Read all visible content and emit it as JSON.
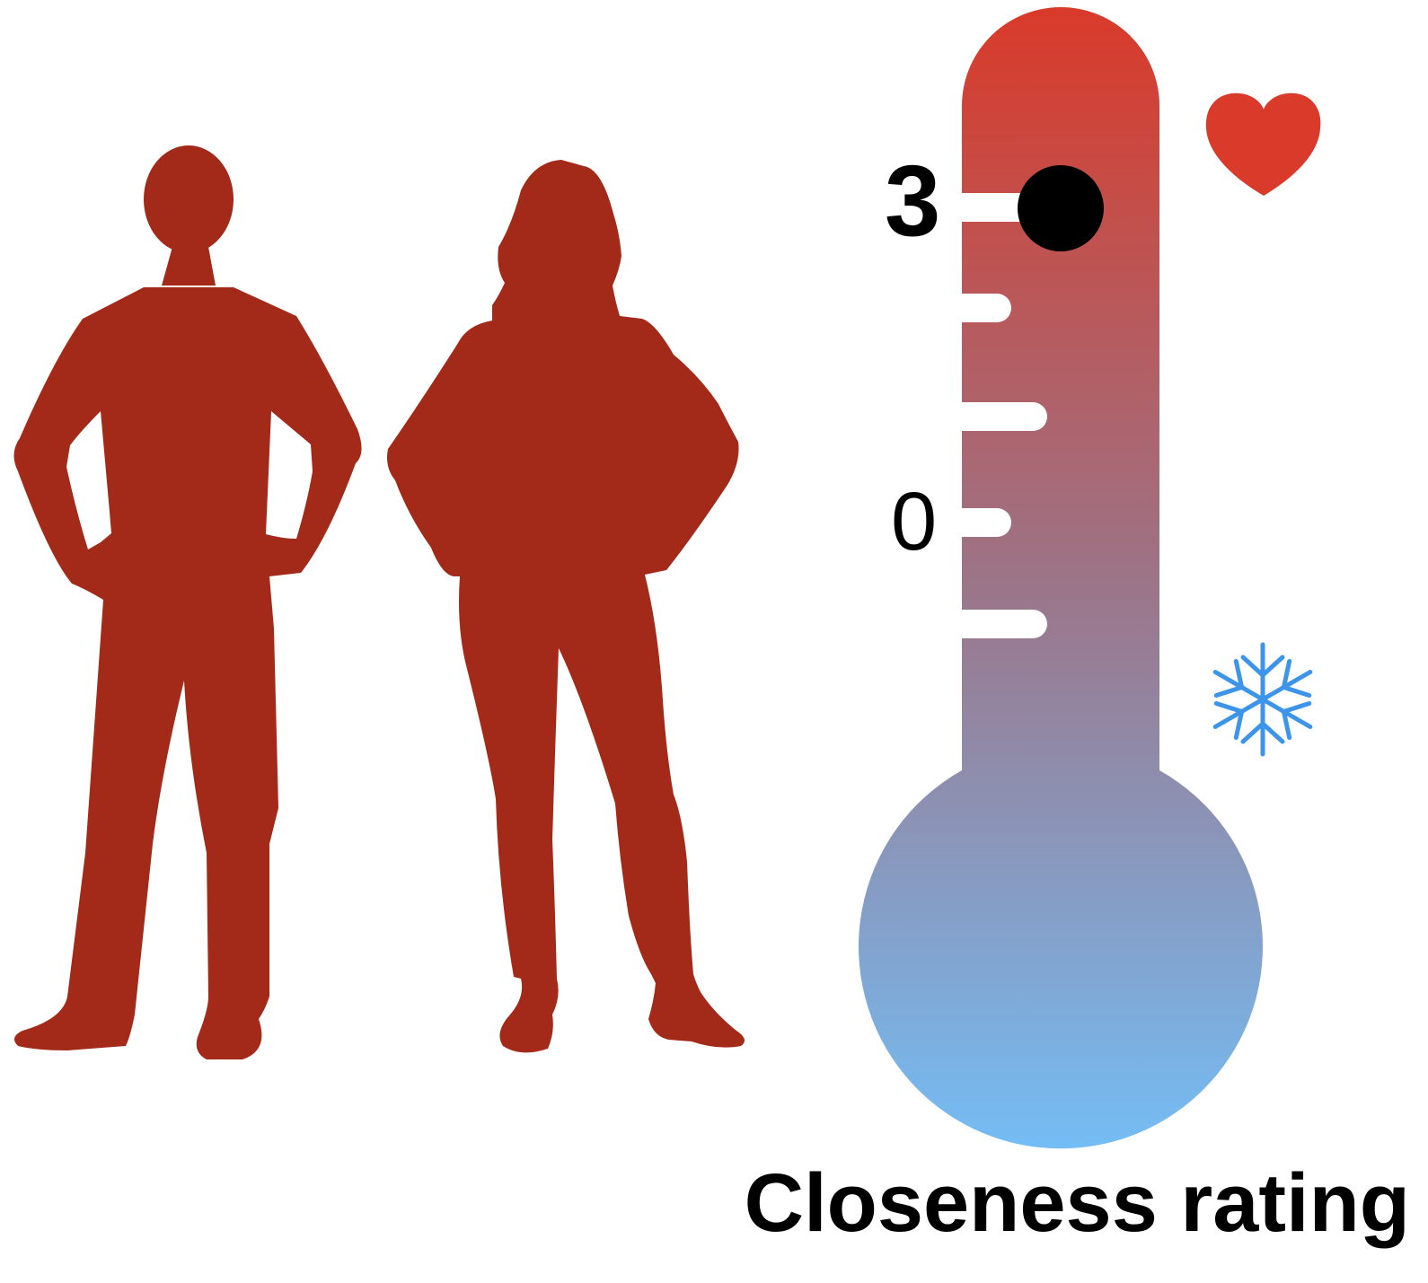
{
  "scale": {
    "high_label": "3",
    "zero_label": "0",
    "current_value": 3
  },
  "caption": "Closeness rating",
  "icons": {
    "top": "heart-icon",
    "bottom": "snowflake-icon"
  },
  "colors": {
    "figures": "#a32a19",
    "thermometer_top": "#d93a29",
    "thermometer_bottom": "#74bdf5",
    "heart": "#d93a29",
    "snowflake": "#3d95ea",
    "marker": "#000000"
  }
}
